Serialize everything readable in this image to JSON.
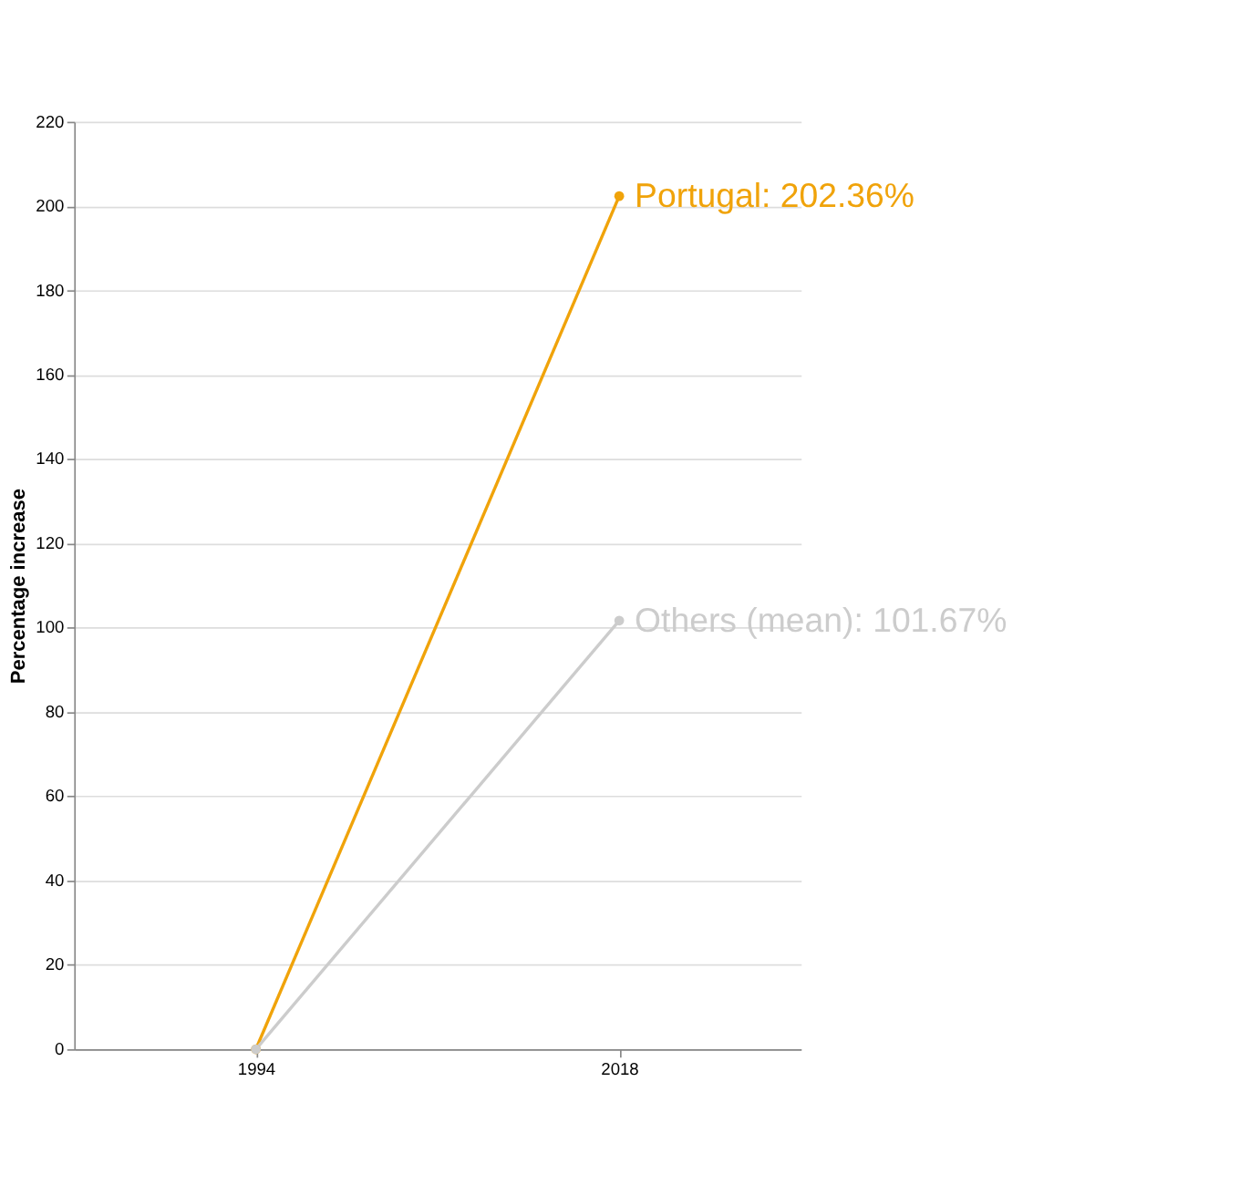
{
  "chart_data": {
    "type": "line",
    "ylabel": "Percentage increase",
    "categories": [
      "1994",
      "2018"
    ],
    "series": [
      {
        "color": "#f0a30a",
        "values": [
          0,
          202.36
        ],
        "value_labels": [
          null,
          "Portugal: 202.36%"
        ]
      },
      {
        "color": "#cccccc",
        "values": [
          0,
          101.67
        ],
        "value_labels": [
          null,
          "Others (mean): 101.67%"
        ]
      }
    ],
    "ylim": [
      0,
      220
    ],
    "yticks": [
      0,
      20,
      40,
      60,
      80,
      100,
      120,
      140,
      160,
      180,
      200,
      220
    ],
    "grid": "y",
    "marker": "circle",
    "legend": false
  }
}
